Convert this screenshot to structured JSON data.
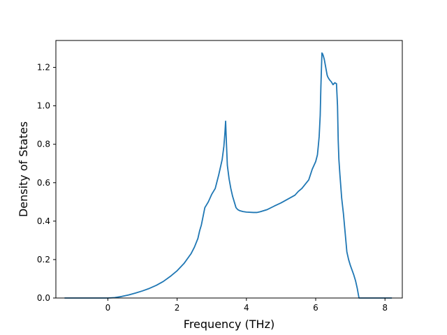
{
  "chart_data": {
    "type": "line",
    "title": "",
    "xlabel": "Frequency (THz)",
    "ylabel": "Density of States",
    "xlim": [
      -1.5,
      8.5
    ],
    "ylim": [
      0.0,
      1.34
    ],
    "xticks": [
      0,
      2,
      4,
      6,
      8
    ],
    "yticks": [
      0.0,
      0.2,
      0.4,
      0.6,
      0.8,
      1.0,
      1.2
    ],
    "xtick_labels": [
      "0",
      "2",
      "4",
      "6",
      "8"
    ],
    "ytick_labels": [
      "0.0",
      "0.2",
      "0.4",
      "0.6",
      "0.8",
      "1.0",
      "1.2"
    ],
    "grid": false,
    "line_color": "#1f77b4",
    "series": [
      {
        "x": [
          -1.25,
          -0.5,
          0.0,
          0.2,
          0.4,
          0.6,
          0.8,
          1.0,
          1.2,
          1.4,
          1.6,
          1.8,
          2.0,
          2.2,
          2.4,
          2.5,
          2.6,
          2.65,
          2.7,
          2.8,
          2.9,
          2.95,
          3.0,
          3.05,
          3.1,
          3.15,
          3.2,
          3.25,
          3.3,
          3.35,
          3.38,
          3.4,
          3.42,
          3.45,
          3.5,
          3.55,
          3.6,
          3.65,
          3.7,
          3.75,
          3.8,
          3.9,
          4.0,
          4.2,
          4.3,
          4.4,
          4.6,
          4.8,
          5.0,
          5.2,
          5.4,
          5.5,
          5.6,
          5.8,
          5.9,
          6.0,
          6.05,
          6.08,
          6.1,
          6.13,
          6.15,
          6.18,
          6.2,
          6.22,
          6.25,
          6.28,
          6.3,
          6.33,
          6.35,
          6.4,
          6.45,
          6.5,
          6.55,
          6.6,
          6.63,
          6.65,
          6.67,
          6.7,
          6.75,
          6.8,
          6.85,
          6.9,
          6.95,
          7.0,
          7.05,
          7.1,
          7.15,
          7.2,
          7.25,
          7.3,
          7.35,
          7.4,
          7.45,
          8.2
        ],
        "y": [
          0.0,
          0.0,
          0.0,
          0.002,
          0.008,
          0.016,
          0.026,
          0.037,
          0.05,
          0.066,
          0.086,
          0.112,
          0.142,
          0.18,
          0.23,
          0.265,
          0.31,
          0.35,
          0.38,
          0.47,
          0.5,
          0.52,
          0.54,
          0.555,
          0.57,
          0.605,
          0.64,
          0.68,
          0.72,
          0.79,
          0.86,
          0.92,
          0.82,
          0.69,
          0.62,
          0.57,
          0.53,
          0.5,
          0.47,
          0.46,
          0.455,
          0.45,
          0.447,
          0.445,
          0.445,
          0.449,
          0.46,
          0.478,
          0.495,
          0.515,
          0.535,
          0.555,
          0.57,
          0.615,
          0.67,
          0.71,
          0.745,
          0.8,
          0.84,
          0.95,
          1.1,
          1.275,
          1.27,
          1.26,
          1.24,
          1.21,
          1.19,
          1.16,
          1.15,
          1.135,
          1.125,
          1.11,
          1.12,
          1.115,
          1.0,
          0.82,
          0.72,
          0.64,
          0.52,
          0.44,
          0.34,
          0.24,
          0.2,
          0.17,
          0.145,
          0.12,
          0.09,
          0.05,
          0.0,
          0.0,
          0.0,
          0.0,
          0.0,
          0.0
        ]
      }
    ]
  }
}
